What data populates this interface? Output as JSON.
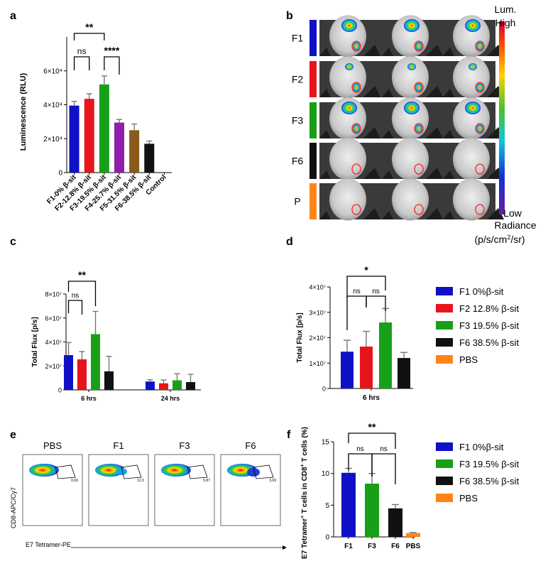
{
  "panel_labels": [
    "a",
    "b",
    "c",
    "d",
    "e",
    "f"
  ],
  "colors": {
    "F1": "#1010c8",
    "F2": "#e8141c",
    "F3": "#17a017",
    "F4": "#8e1fa8",
    "F5": "#8a5a1c",
    "F6": "#111111",
    "PBS": "#ff8418",
    "error": "#777777"
  },
  "imaging": {
    "rows": [
      "F1",
      "F2",
      "F3",
      "F6",
      "P"
    ],
    "colorbar": {
      "title": "Lum.",
      "high": "High",
      "low": "Low",
      "radiance_label": "Radiance",
      "unit_prefix": "(p/s/cm",
      "unit_sup": "2",
      "unit_suffix": "/sr)"
    }
  },
  "flow": {
    "ylabel": "CD8-APC/Cy7",
    "xlabel": "E7 Tetramer-PE",
    "panels": [
      {
        "label": "PBS",
        "value": "0.69"
      },
      {
        "label": "F1",
        "value": "12.0"
      },
      {
        "label": "F3",
        "value": "5.87"
      },
      {
        "label": "F6",
        "value": "3.69"
      }
    ]
  },
  "legend_d": [
    "F1 0%β-sit",
    "F2 12.8% β-sit",
    "F3 19.5% β-sit",
    "F6 38.5% β-sit",
    "PBS"
  ],
  "legend_f": [
    "F1 0%β-sit",
    "F3 19.5% β-sit",
    "F6 38.5% β-sit",
    "PBS"
  ],
  "chart_data": [
    {
      "panel": "a",
      "type": "bar",
      "ylabel": "Luminescence (RLU)",
      "ylim": [
        0,
        80000
      ],
      "ytick_values": [
        0,
        20000,
        40000,
        60000
      ],
      "ytick_labels": [
        "0",
        "2×10⁴",
        "4×10⁴",
        "6×10⁴"
      ],
      "categories": [
        "F1-0% β-sit",
        "F2-12.8% β-sit",
        "F3-19.5% β-sit",
        "F4-25.7% β-sit",
        "F5-31.5% β-sit",
        "F6-38.5% β-sit",
        "Control"
      ],
      "values": [
        39500,
        43500,
        52000,
        29500,
        25000,
        17000,
        0
      ],
      "errors": [
        2500,
        3000,
        5000,
        1800,
        3700,
        1600,
        0
      ],
      "color_keys": [
        "F1",
        "F2",
        "F3",
        "F4",
        "F5",
        "F6",
        "F6"
      ],
      "significance": [
        {
          "from": 0,
          "to": 1,
          "text": "ns",
          "level": 0
        },
        {
          "from": 2,
          "to": 3,
          "text": "****",
          "level": 0
        },
        {
          "from": 0,
          "to": 2,
          "text": "**",
          "level": 1
        }
      ]
    },
    {
      "panel": "c",
      "type": "bar",
      "ylabel": "Total Flux [p/s]",
      "ylim": [
        0,
        80000000
      ],
      "ytick_values": [
        0,
        20000000,
        40000000,
        60000000,
        80000000
      ],
      "ytick_labels": [
        "0",
        "2×10⁷",
        "4×10⁷",
        "6×10⁷",
        "8×10⁷"
      ],
      "groups": [
        "6 hrs",
        "24 hrs"
      ],
      "series": [
        {
          "key": "F1",
          "values": [
            29000000,
            7000000
          ],
          "errors": [
            10500000,
            1500000
          ]
        },
        {
          "key": "F2",
          "values": [
            25500000,
            5500000
          ],
          "errors": [
            6500000,
            2800000
          ]
        },
        {
          "key": "F3",
          "values": [
            46500000,
            8000000
          ],
          "errors": [
            19000000,
            5500000
          ]
        },
        {
          "key": "F6",
          "values": [
            15500000,
            6500000
          ],
          "errors": [
            12500000,
            6500000
          ]
        }
      ],
      "significance": [
        {
          "group": 0,
          "from": 0,
          "to": 1,
          "text": "ns",
          "level": 0
        },
        {
          "group": 0,
          "from": 0,
          "to": 2,
          "text": "**",
          "level": 1
        }
      ]
    },
    {
      "panel": "d",
      "type": "bar",
      "ylabel": "Total Flux [p/s]",
      "ylim": [
        0,
        40000000
      ],
      "ytick_values": [
        0,
        10000000,
        20000000,
        30000000,
        40000000
      ],
      "ytick_labels": [
        "0",
        "1×10⁷",
        "2×10⁷",
        "3×10⁷",
        "4×10⁷"
      ],
      "xlabel": "6 hrs",
      "categories": [
        "F1",
        "F2",
        "F3",
        "F6"
      ],
      "values": [
        14500000,
        16500000,
        26000000,
        12000000
      ],
      "errors": [
        4500000,
        6000000,
        5500000,
        2200000
      ],
      "color_keys": [
        "F1",
        "F2",
        "F3",
        "F6"
      ],
      "significance": [
        {
          "from": 0,
          "to": 1,
          "text": "ns",
          "level": 0
        },
        {
          "from": 1,
          "to": 2,
          "text": "ns",
          "level": 0
        },
        {
          "from": 0,
          "to": 2,
          "text": "*",
          "level": 1
        }
      ]
    },
    {
      "panel": "f",
      "type": "bar",
      "ylabel_main": "E7 Tetramer",
      "ylabel_tail": " T cells in CD8",
      "ylabel_end": " T cells (%)",
      "ylabel_sup": "+",
      "ylim": [
        0,
        15
      ],
      "ytick_values": [
        0,
        5,
        10,
        15
      ],
      "ytick_labels": [
        "0",
        "5",
        "10",
        "15"
      ],
      "categories": [
        "F1",
        "F3",
        "F6",
        "PBS"
      ],
      "values": [
        10.1,
        8.4,
        4.5,
        0.6
      ],
      "errors": [
        0.7,
        1.6,
        0.6,
        0.1
      ],
      "color_keys": [
        "F1",
        "F3",
        "F6",
        "PBS"
      ],
      "significance": [
        {
          "from": 0,
          "to": 1,
          "text": "ns",
          "level": 0
        },
        {
          "from": 1,
          "to": 2,
          "text": "ns",
          "level": 0
        },
        {
          "from": 0,
          "to": 2,
          "text": "**",
          "level": 1
        }
      ]
    }
  ]
}
